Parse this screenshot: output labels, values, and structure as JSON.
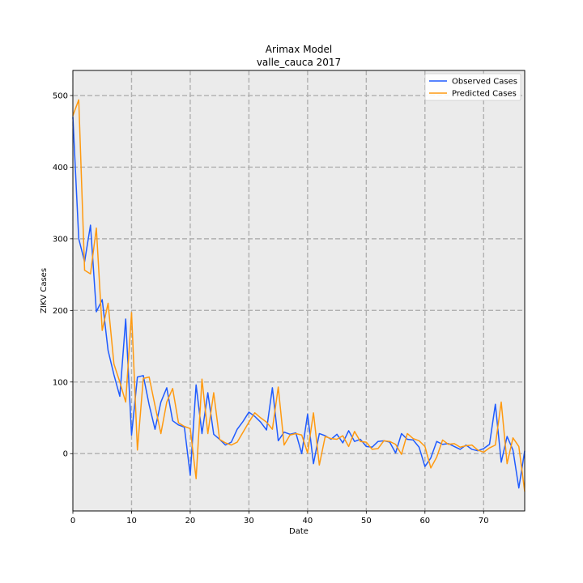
{
  "chart_data": {
    "type": "line",
    "title": "Arimax Model",
    "subtitle": "valle_cauca 2017",
    "xlabel": "Date",
    "ylabel": "ZIKV Cases",
    "xlim": [
      0,
      77
    ],
    "ylim": [
      -80,
      535
    ],
    "xticks": [
      0,
      10,
      20,
      30,
      40,
      50,
      60,
      70
    ],
    "yticks": [
      0,
      100,
      200,
      300,
      400,
      500
    ],
    "grid": true,
    "legend_position": "top-right",
    "background": "#ebebeb",
    "series": [
      {
        "name": "Observed Cases",
        "color": "#1f5bff",
        "x": [
          0,
          1,
          2,
          3,
          4,
          5,
          6,
          7,
          8,
          9,
          10,
          11,
          12,
          13,
          14,
          15,
          16,
          17,
          18,
          19,
          20,
          21,
          22,
          23,
          24,
          25,
          26,
          27,
          28,
          29,
          30,
          31,
          32,
          33,
          34,
          35,
          36,
          37,
          38,
          39,
          40,
          41,
          42,
          43,
          44,
          45,
          46,
          47,
          48,
          49,
          50,
          51,
          52,
          53,
          54,
          55,
          56,
          57,
          58,
          59,
          60,
          61,
          62,
          63,
          64,
          65,
          66,
          67,
          68,
          69,
          70,
          71,
          72,
          73,
          74,
          75,
          76,
          77
        ],
        "values": [
          470,
          300,
          268,
          319,
          198,
          215,
          144,
          110,
          80,
          188,
          26,
          107,
          109,
          68,
          34,
          72,
          92,
          46,
          40,
          37,
          -30,
          96,
          28,
          85,
          27,
          20,
          12,
          16,
          34,
          45,
          58,
          52,
          44,
          33,
          92,
          18,
          30,
          27,
          29,
          0,
          55,
          -14,
          28,
          25,
          20,
          27,
          15,
          32,
          17,
          20,
          10,
          9,
          17,
          18,
          16,
          1,
          28,
          20,
          19,
          9,
          -18,
          -6,
          17,
          13,
          14,
          10,
          6,
          12,
          6,
          4,
          7,
          13,
          69,
          -12,
          24,
          5,
          -48,
          4
        ]
      },
      {
        "name": "Predicted Cases",
        "color": "#ff9a10",
        "x": [
          0,
          1,
          2,
          3,
          4,
          5,
          6,
          7,
          8,
          9,
          10,
          11,
          12,
          13,
          14,
          15,
          16,
          17,
          18,
          19,
          20,
          21,
          22,
          23,
          24,
          25,
          26,
          27,
          28,
          29,
          30,
          31,
          32,
          33,
          34,
          35,
          36,
          37,
          38,
          39,
          40,
          41,
          42,
          43,
          44,
          45,
          46,
          47,
          48,
          49,
          50,
          51,
          52,
          53,
          54,
          55,
          56,
          57,
          58,
          59,
          60,
          61,
          62,
          63,
          64,
          65,
          66,
          67,
          68,
          69,
          70,
          71,
          72,
          73,
          74,
          75,
          76,
          77
        ],
        "values": [
          472,
          494,
          256,
          251,
          315,
          172,
          210,
          125,
          100,
          72,
          197,
          5,
          105,
          107,
          67,
          28,
          72,
          91,
          43,
          38,
          35,
          -35,
          104,
          28,
          85,
          20,
          15,
          12,
          16,
          30,
          44,
          57,
          50,
          44,
          34,
          93,
          12,
          26,
          28,
          26,
          1,
          57,
          -16,
          24,
          21,
          20,
          25,
          10,
          31,
          17,
          16,
          6,
          7,
          18,
          17,
          13,
          -1,
          28,
          21,
          18,
          10,
          -20,
          -5,
          19,
          13,
          14,
          9,
          11,
          12,
          5,
          2,
          8,
          12,
          72,
          -14,
          22,
          10,
          -53
        ]
      }
    ]
  }
}
